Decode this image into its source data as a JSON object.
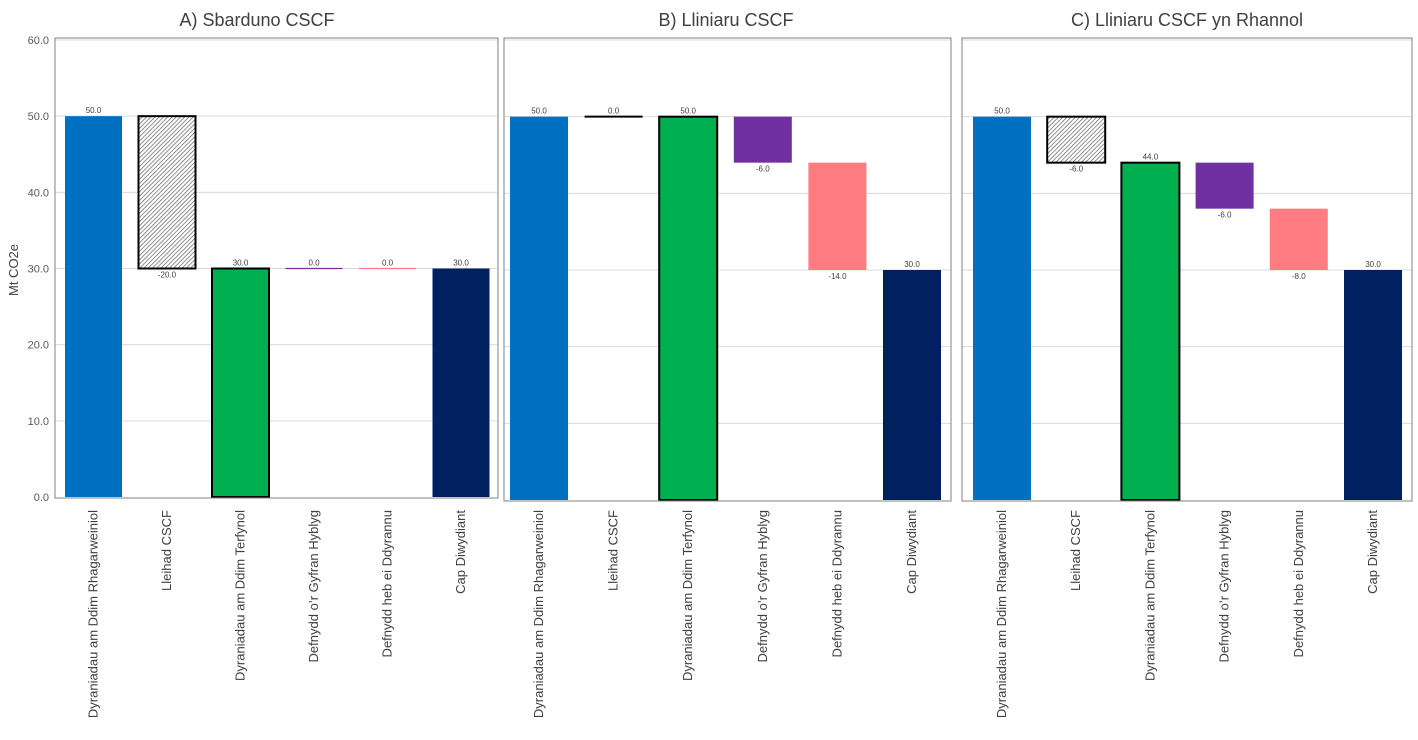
{
  "ylabel": "Mt CO2e",
  "y_ticks": [
    "0.0",
    "10.0",
    "20.0",
    "30.0",
    "40.0",
    "50.0",
    "60.0"
  ],
  "chart_data": [
    {
      "type": "waterfall",
      "title": "A) Sbarduno CSCF",
      "ylabel": "Mt CO2e",
      "ylim": [
        0,
        60
      ],
      "grid": true,
      "categories": [
        "Dyraniadau am Ddim Rhagarweiniol",
        "Lleihad CSCF",
        "Dyraniadau am Ddim Terfynol",
        "Defnydd o’r Gyfran Hyblyg",
        "Defnydd heb ei Ddyrannu",
        "Cap Diwydiant"
      ],
      "bars": [
        {
          "category": "Dyraniadau am Ddim Rhagarweiniol",
          "kind": "total",
          "start": 0,
          "end": 50,
          "label": "50.0",
          "color": "#0070C0",
          "outlined": false,
          "hatched": false
        },
        {
          "category": "Lleihad CSCF",
          "kind": "delta",
          "start": 50,
          "end": 30,
          "label": "-20.0",
          "color": "#ffffff",
          "outlined": true,
          "hatched": true
        },
        {
          "category": "Dyraniadau am Ddim Terfynol",
          "kind": "total",
          "start": 0,
          "end": 30,
          "label": "30.0",
          "color": "#00B050",
          "outlined": true,
          "hatched": false
        },
        {
          "category": "Defnydd o’r Gyfran Hyblyg",
          "kind": "delta",
          "start": 30,
          "end": 30,
          "label": "0.0",
          "color": "#7030A0",
          "outlined": false,
          "hatched": false
        },
        {
          "category": "Defnydd heb ei Ddyrannu",
          "kind": "delta",
          "start": 30,
          "end": 30,
          "label": "0.0",
          "color": "#FF7C80",
          "outlined": false,
          "hatched": false
        },
        {
          "category": "Cap Diwydiant",
          "kind": "total",
          "start": 0,
          "end": 30,
          "label": "30.0",
          "color": "#002060",
          "outlined": false,
          "hatched": false
        }
      ]
    },
    {
      "type": "waterfall",
      "title": "B) Lliniaru CSCF",
      "ylim": [
        0,
        60
      ],
      "grid": true,
      "categories": [
        "Dyraniadau am Ddim Rhagarweiniol",
        "Lleihad CSCF",
        "Dyraniadau am Ddim Terfynol",
        "Defnydd o’r Gyfran Hyblyg",
        "Defnydd heb ei Ddyrannu",
        "Cap Diwydiant"
      ],
      "bars": [
        {
          "category": "Dyraniadau am Ddim Rhagarweiniol",
          "kind": "total",
          "start": 0,
          "end": 50,
          "label": "50.0",
          "color": "#0070C0",
          "outlined": false,
          "hatched": false
        },
        {
          "category": "Lleihad CSCF",
          "kind": "delta",
          "start": 50,
          "end": 50,
          "label": "0.0",
          "color": "#000000",
          "outlined": true,
          "hatched": false
        },
        {
          "category": "Dyraniadau am Ddim Terfynol",
          "kind": "total",
          "start": 0,
          "end": 50,
          "label": "50.0",
          "color": "#00B050",
          "outlined": true,
          "hatched": false
        },
        {
          "category": "Defnydd o’r Gyfran Hyblyg",
          "kind": "delta",
          "start": 50,
          "end": 44,
          "label": "-6.0",
          "color": "#7030A0",
          "outlined": false,
          "hatched": false
        },
        {
          "category": "Defnydd heb ei Ddyrannu",
          "kind": "delta",
          "start": 44,
          "end": 30,
          "label": "-14.0",
          "color": "#FF7C80",
          "outlined": false,
          "hatched": false
        },
        {
          "category": "Cap Diwydiant",
          "kind": "total",
          "start": 0,
          "end": 30,
          "label": "30.0",
          "color": "#002060",
          "outlined": false,
          "hatched": false
        }
      ]
    },
    {
      "type": "waterfall",
      "title": "C) Lliniaru CSCF yn Rhannol",
      "ylim": [
        0,
        60
      ],
      "grid": true,
      "categories": [
        "Dyraniadau am Ddim Rhagarweiniol",
        "Lleihad CSCF",
        "Dyraniadau am Ddim Terfynol",
        "Defnydd o’r Gyfran Hyblyg",
        "Defnydd heb ei Ddyrannu",
        "Cap Diwydiant"
      ],
      "bars": [
        {
          "category": "Dyraniadau am Ddim Rhagarweiniol",
          "kind": "total",
          "start": 0,
          "end": 50,
          "label": "50.0",
          "color": "#0070C0",
          "outlined": false,
          "hatched": false
        },
        {
          "category": "Lleihad CSCF",
          "kind": "delta",
          "start": 50,
          "end": 44,
          "label": "-6.0",
          "color": "#ffffff",
          "outlined": true,
          "hatched": true
        },
        {
          "category": "Dyraniadau am Ddim Terfynol",
          "kind": "total",
          "start": 0,
          "end": 44,
          "label": "44.0",
          "color": "#00B050",
          "outlined": true,
          "hatched": false
        },
        {
          "category": "Defnydd o’r Gyfran Hyblyg",
          "kind": "delta",
          "start": 44,
          "end": 38,
          "label": "-6.0",
          "color": "#7030A0",
          "outlined": false,
          "hatched": false
        },
        {
          "category": "Defnydd heb ei Ddyrannu",
          "kind": "delta",
          "start": 38,
          "end": 30,
          "label": "-8.0",
          "color": "#FF7C80",
          "outlined": false,
          "hatched": false
        },
        {
          "category": "Cap Diwydiant",
          "kind": "total",
          "start": 0,
          "end": 30,
          "label": "30.0",
          "color": "#002060",
          "outlined": false,
          "hatched": false
        }
      ]
    }
  ]
}
